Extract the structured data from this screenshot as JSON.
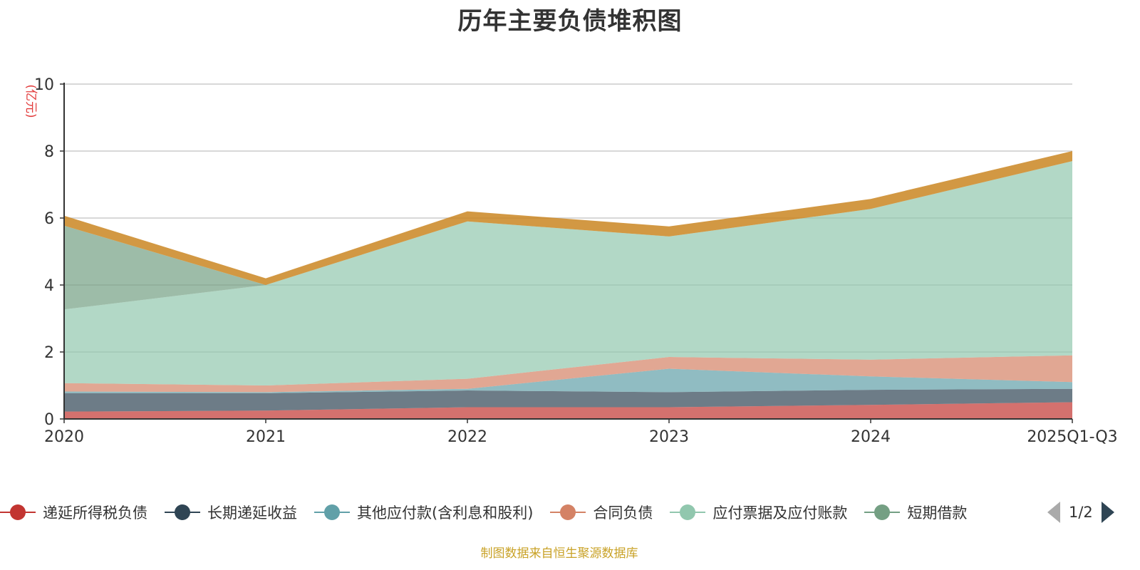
{
  "chart_data": {
    "type": "area",
    "title": "历年主要负债堆积图",
    "unit_label": "(亿元)",
    "categories": [
      "2020",
      "2021",
      "2022",
      "2023",
      "2024",
      "2025Q1-Q3"
    ],
    "ylim": [
      0,
      10
    ],
    "yticks": [
      0,
      2,
      4,
      6,
      8,
      10
    ],
    "grid": true,
    "stacked": true,
    "series": [
      {
        "name": "递延所得税负债",
        "color": "#c23531",
        "values": [
          0.22,
          0.25,
          0.35,
          0.35,
          0.42,
          0.5
        ]
      },
      {
        "name": "长期递延收益",
        "color": "#2f4554",
        "values": [
          0.55,
          0.52,
          0.5,
          0.45,
          0.45,
          0.4
        ]
      },
      {
        "name": "其他应付款(含利息和股利)",
        "color": "#61a0a8",
        "values": [
          0.05,
          0.03,
          0.05,
          0.7,
          0.4,
          0.2
        ]
      },
      {
        "name": "合同负债",
        "color": "#d48265",
        "values": [
          0.25,
          0.2,
          0.3,
          0.35,
          0.5,
          0.8
        ]
      },
      {
        "name": "应付票据及应付账款",
        "color": "#91c7ae",
        "values": [
          2.2,
          3.0,
          4.7,
          3.6,
          4.5,
          5.8
        ]
      },
      {
        "name": "短期借款",
        "color": "#749f83",
        "values": [
          2.5,
          0,
          0,
          0,
          0,
          0
        ]
      },
      {
        "name": "",
        "color": "#ca8622",
        "values": [
          0.3,
          0.2,
          0.3,
          0.3,
          0.3,
          0.3
        ]
      }
    ]
  },
  "legend": {
    "items": [
      {
        "label": "递延所得税负债",
        "color": "#c23531"
      },
      {
        "label": "长期递延收益",
        "color": "#2f4554"
      },
      {
        "label": "其他应付款(含利息和股利)",
        "color": "#61a0a8"
      },
      {
        "label": "合同负债",
        "color": "#d48265"
      },
      {
        "label": "应付票据及应付账款",
        "color": "#91c7ae"
      },
      {
        "label": "短期借款",
        "color": "#749f83"
      }
    ],
    "page": "1/2"
  },
  "source": "制图数据来自恒生聚源数据库"
}
